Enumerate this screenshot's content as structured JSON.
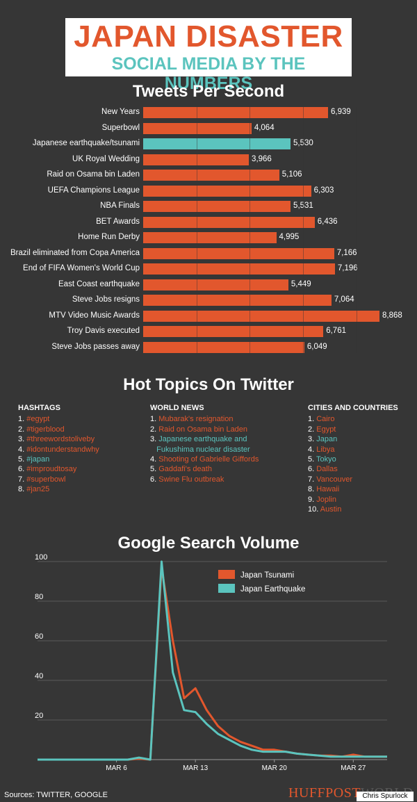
{
  "header": {
    "title": "JAPAN DISASTER",
    "subtitle": "SOCIAL MEDIA BY THE NUMBERS"
  },
  "colors": {
    "accent_orange": "#e2572d",
    "accent_teal": "#5bc4be",
    "background": "#363636"
  },
  "sections": {
    "tweets_title": "Tweets Per Second",
    "topics_title": "Hot Topics On Twitter",
    "search_title": "Google Search Volume"
  },
  "chart_data": [
    {
      "type": "bar",
      "orientation": "horizontal",
      "title": "Tweets Per Second",
      "categories": [
        "New Years",
        "Superbowl",
        "Japanese earthquake/tsunami",
        "UK Royal Wedding",
        "Raid on Osama bin Laden",
        "UEFA Champions League",
        "NBA Finals",
        "BET Awards",
        "Home Run Derby",
        "Brazil eliminated from Copa America",
        "End of FIFA Women's World Cup",
        "East Coast earthquake",
        "Steve Jobs resigns",
        "MTV Video Music Awards",
        "Troy Davis executed",
        "Steve Jobs passes away"
      ],
      "values": [
        6939,
        4064,
        5530,
        3966,
        5106,
        6303,
        5531,
        6436,
        4995,
        7166,
        7196,
        5449,
        7064,
        8868,
        6761,
        6049
      ],
      "value_labels": [
        "6,939",
        "4,064",
        "5,530",
        "3,966",
        "5,106",
        "6,303",
        "5,531",
        "6,436",
        "4,995",
        "7,166",
        "7,196",
        "5,449",
        "7,064",
        "8,868",
        "6,761",
        "6,049"
      ],
      "highlight": "Japanese earthquake/tsunami",
      "xlim": [
        0,
        9000
      ]
    },
    {
      "type": "line",
      "title": "Google Search Volume",
      "x": [
        "Feb 27",
        "Feb 28",
        "Mar 1",
        "Mar 2",
        "Mar 3",
        "Mar 4",
        "Mar 5",
        "Mar 6",
        "Mar 7",
        "Mar 8",
        "Mar 9",
        "Mar 10",
        "Mar 11",
        "Mar 12",
        "Mar 13",
        "Mar 14",
        "Mar 15",
        "Mar 16",
        "Mar 17",
        "Mar 18",
        "Mar 19",
        "Mar 20",
        "Mar 21",
        "Mar 22",
        "Mar 23",
        "Mar 24",
        "Mar 25",
        "Mar 26",
        "Mar 27",
        "Mar 28",
        "Mar 29",
        "Mar 30"
      ],
      "xticks": [
        "MAR 6",
        "MAR 13",
        "MAR 20",
        "MAR 27"
      ],
      "yticks": [
        "100",
        "80",
        "60",
        "40",
        "20"
      ],
      "ylim": [
        0,
        100
      ],
      "series": [
        {
          "name": "Japan Tsunami",
          "color": "#e2572d",
          "values": [
            0,
            0,
            0,
            0,
            0,
            0,
            0,
            0,
            0,
            0.5,
            0,
            97,
            60,
            31,
            36,
            25,
            17,
            12,
            9,
            7,
            5,
            5,
            4,
            3,
            2.5,
            2,
            2,
            1.5,
            2.5,
            1.5,
            1.5,
            1.5
          ]
        },
        {
          "name": "Japan Earthquake",
          "color": "#5bc4be",
          "values": [
            0,
            0,
            0,
            0,
            0,
            0,
            0,
            0,
            0,
            1,
            0,
            100,
            44,
            25,
            24,
            18,
            13,
            10,
            7,
            5,
            4,
            4,
            4,
            3,
            2.5,
            2,
            1.5,
            1.5,
            1.5,
            1.5,
            1.5,
            1.5
          ]
        }
      ],
      "legend_position": "top-right",
      "grid": true
    }
  ],
  "topics": {
    "hashtags": {
      "heading": "HASHTAGS",
      "items": [
        {
          "n": "1.",
          "text": "#egypt"
        },
        {
          "n": "2.",
          "text": "#tigerblood"
        },
        {
          "n": "3.",
          "text": "#threewordstoliveby"
        },
        {
          "n": "4.",
          "text": "#idontunderstandwhy"
        },
        {
          "n": "5.",
          "text": "#japan",
          "teal": true
        },
        {
          "n": "6.",
          "text": "#improudtosay"
        },
        {
          "n": "7.",
          "text": "#superbowl"
        },
        {
          "n": "8.",
          "text": "#jan25"
        }
      ]
    },
    "world_news": {
      "heading": "WORLD NEWS",
      "items": [
        {
          "n": "1.",
          "text": "Mubarak's resignation"
        },
        {
          "n": "2.",
          "text": "Raid on Osama bin Laden"
        },
        {
          "n": "3.",
          "text": "Japanese earthquake and",
          "teal": true
        },
        {
          "n": "",
          "text": "Fukushima nuclear disaster",
          "teal": true
        },
        {
          "n": "4.",
          "text": "Shooting of Gabrielle Giffords"
        },
        {
          "n": "5.",
          "text": "Gaddafi's death"
        },
        {
          "n": "6.",
          "text": "Swine Flu outbreak"
        }
      ]
    },
    "cities": {
      "heading": "CITIES AND COUNTRIES",
      "items": [
        {
          "n": "1.",
          "text": "Cairo"
        },
        {
          "n": "2.",
          "text": "Egypt"
        },
        {
          "n": "3.",
          "text": "Japan",
          "teal": true
        },
        {
          "n": "4.",
          "text": "Libya"
        },
        {
          "n": "5.",
          "text": "Tokyo",
          "teal": true
        },
        {
          "n": "6.",
          "text": "Dallas"
        },
        {
          "n": "7.",
          "text": "Vancouver"
        },
        {
          "n": "8.",
          "text": "Hawaii"
        },
        {
          "n": "9.",
          "text": "Joplin"
        },
        {
          "n": "10.",
          "text": "Austin"
        }
      ]
    }
  },
  "footer": {
    "sources": "Sources: TWITTER, GOOGLE",
    "brand": "HUFFPOST",
    "brand_suffix": "WORLD",
    "credit": "Chris Spurlock"
  }
}
